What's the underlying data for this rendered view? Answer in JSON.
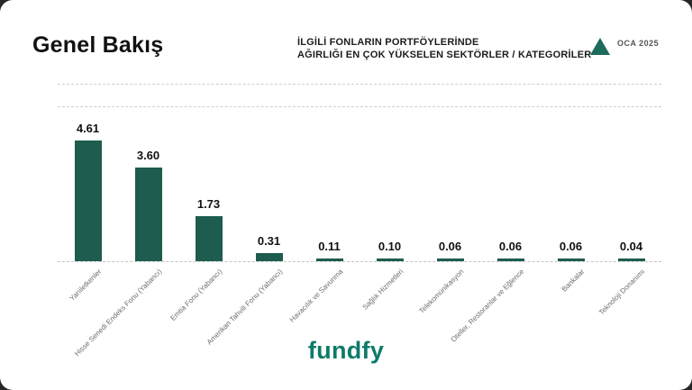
{
  "header": {
    "title": "Genel Bakış",
    "subtitle_line1": "İLGİLİ FONLARIN PORTFÖYLERİNDE",
    "subtitle_line2": "AĞIRLIĞI EN ÇOK YÜKSELEN SEKTÖRLER / KATEGORİLER",
    "period": "OCA 2025"
  },
  "footer": {
    "brand": "fundfy"
  },
  "colors": {
    "bar": "#1d5c4e",
    "triangle": "#1d6b5a",
    "brand": "#0d7b68"
  },
  "chart_data": {
    "type": "bar",
    "title": "Genel Bakış",
    "subtitle": "İLGİLİ FONLARIN PORTFÖYLERİNDE AĞIRLIĞI EN ÇOK YÜKSELEN SEKTÖRLER / KATEGORİLER",
    "period": "OCA 2025",
    "categories": [
      "Yarıiletkenler",
      "Hisse Senedi Endeks Fonu (Yabancı)",
      "Emtia Fonu (Yabancı)",
      "Amerikan Tahvili Fonu (Yabancı)",
      "Havacılık ve Savunma",
      "Sağlık Hizmetleri",
      "Telekomünikasyon",
      "Oteller, Restoranlar ve Eğlence",
      "Bankalar",
      "Teknoloji Donanımı"
    ],
    "values": [
      4.61,
      3.6,
      1.73,
      0.31,
      0.11,
      0.1,
      0.06,
      0.06,
      0.06,
      0.04
    ],
    "value_labels": [
      "4.61",
      "3.60",
      "1.73",
      "0.31",
      "0.11",
      "0.10",
      "0.06",
      "0.06",
      "0.06",
      "0.04"
    ],
    "bar_color": "#1d5c4e",
    "xlabel": "",
    "ylabel": "",
    "ylim": [
      0,
      5
    ],
    "grid": "dashed-horizontal",
    "legend": "none"
  }
}
